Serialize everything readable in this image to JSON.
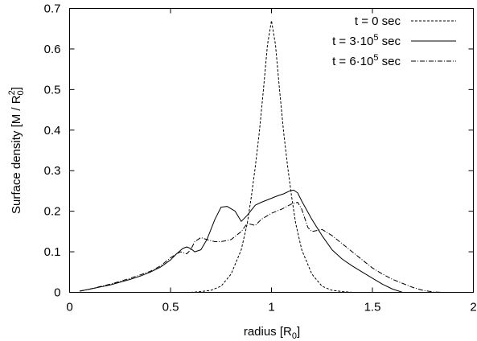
{
  "chart_data": {
    "type": "line",
    "title": "",
    "xlabel": {
      "main": "radius   [R",
      "sub": "0",
      "tail": "]"
    },
    "ylabel": {
      "main": "Surface density   [M / R",
      "sub": "0",
      "sup": "2",
      "tail": "]"
    },
    "xlim": [
      0,
      2
    ],
    "ylim": [
      0,
      0.7
    ],
    "xticks": [
      0,
      0.5,
      1,
      1.5,
      2
    ],
    "xtick_labels": [
      "0",
      "0.5",
      "1",
      "1.5",
      "2"
    ],
    "yticks": [
      0,
      0.1,
      0.2,
      0.3,
      0.4,
      0.5,
      0.6,
      0.7
    ],
    "ytick_labels": [
      "0",
      "0.1",
      "0.2",
      "0.3",
      "0.4",
      "0.5",
      "0.6",
      "0.7"
    ],
    "grid": false,
    "legend_position": "top-right",
    "series": [
      {
        "name": "t = 0 sec",
        "label": {
          "main": "t = 0 sec"
        },
        "dash": "3,2",
        "x": [
          0.6,
          0.65,
          0.7,
          0.75,
          0.8,
          0.85,
          0.88,
          0.9,
          0.92,
          0.94,
          0.96,
          0.98,
          1.0,
          1.02,
          1.04,
          1.06,
          1.08,
          1.1,
          1.12,
          1.15,
          1.2,
          1.25,
          1.3,
          1.35,
          1.4
        ],
        "y": [
          0.0,
          0.002,
          0.005,
          0.015,
          0.045,
          0.105,
          0.17,
          0.235,
          0.31,
          0.395,
          0.5,
          0.61,
          0.67,
          0.61,
          0.5,
          0.395,
          0.31,
          0.235,
          0.17,
          0.105,
          0.045,
          0.015,
          0.005,
          0.002,
          0.0
        ]
      },
      {
        "name": "t = 3·10^5 sec",
        "label": {
          "main": "t = 3·10",
          "sup": "5",
          "tail": " sec"
        },
        "dash": "",
        "x": [
          0.05,
          0.1,
          0.15,
          0.2,
          0.25,
          0.3,
          0.35,
          0.4,
          0.45,
          0.5,
          0.53,
          0.56,
          0.58,
          0.6,
          0.62,
          0.65,
          0.68,
          0.72,
          0.75,
          0.78,
          0.82,
          0.85,
          0.88,
          0.92,
          0.95,
          0.98,
          1.0,
          1.03,
          1.06,
          1.09,
          1.11,
          1.13,
          1.15,
          1.2,
          1.25,
          1.3,
          1.35,
          1.4,
          1.45,
          1.5,
          1.55,
          1.6,
          1.65
        ],
        "y": [
          0.003,
          0.008,
          0.013,
          0.018,
          0.025,
          0.032,
          0.04,
          0.05,
          0.062,
          0.08,
          0.095,
          0.108,
          0.112,
          0.108,
          0.1,
          0.105,
          0.13,
          0.18,
          0.21,
          0.212,
          0.2,
          0.175,
          0.19,
          0.215,
          0.222,
          0.228,
          0.232,
          0.238,
          0.243,
          0.25,
          0.252,
          0.245,
          0.225,
          0.18,
          0.14,
          0.105,
          0.082,
          0.065,
          0.05,
          0.035,
          0.02,
          0.008,
          0.0
        ]
      },
      {
        "name": "t = 6·10^5 sec",
        "label": {
          "main": "t = 6·10",
          "sup": "5",
          "tail": " sec"
        },
        "dash": "6,2,1,2",
        "x": [
          0.05,
          0.1,
          0.15,
          0.2,
          0.25,
          0.3,
          0.35,
          0.4,
          0.45,
          0.5,
          0.53,
          0.55,
          0.58,
          0.6,
          0.62,
          0.65,
          0.68,
          0.72,
          0.75,
          0.8,
          0.85,
          0.88,
          0.92,
          0.95,
          1.0,
          1.05,
          1.1,
          1.13,
          1.15,
          1.18,
          1.2,
          1.25,
          1.3,
          1.35,
          1.4,
          1.45,
          1.5,
          1.55,
          1.6,
          1.65,
          1.7,
          1.75,
          1.8,
          1.85
        ],
        "y": [
          0.003,
          0.008,
          0.014,
          0.02,
          0.027,
          0.035,
          0.043,
          0.052,
          0.065,
          0.085,
          0.095,
          0.1,
          0.095,
          0.105,
          0.125,
          0.135,
          0.13,
          0.125,
          0.125,
          0.13,
          0.15,
          0.17,
          0.165,
          0.18,
          0.195,
          0.205,
          0.218,
          0.222,
          0.205,
          0.16,
          0.15,
          0.155,
          0.14,
          0.12,
          0.1,
          0.08,
          0.06,
          0.045,
          0.032,
          0.022,
          0.012,
          0.005,
          0.001,
          0.0
        ]
      }
    ]
  }
}
